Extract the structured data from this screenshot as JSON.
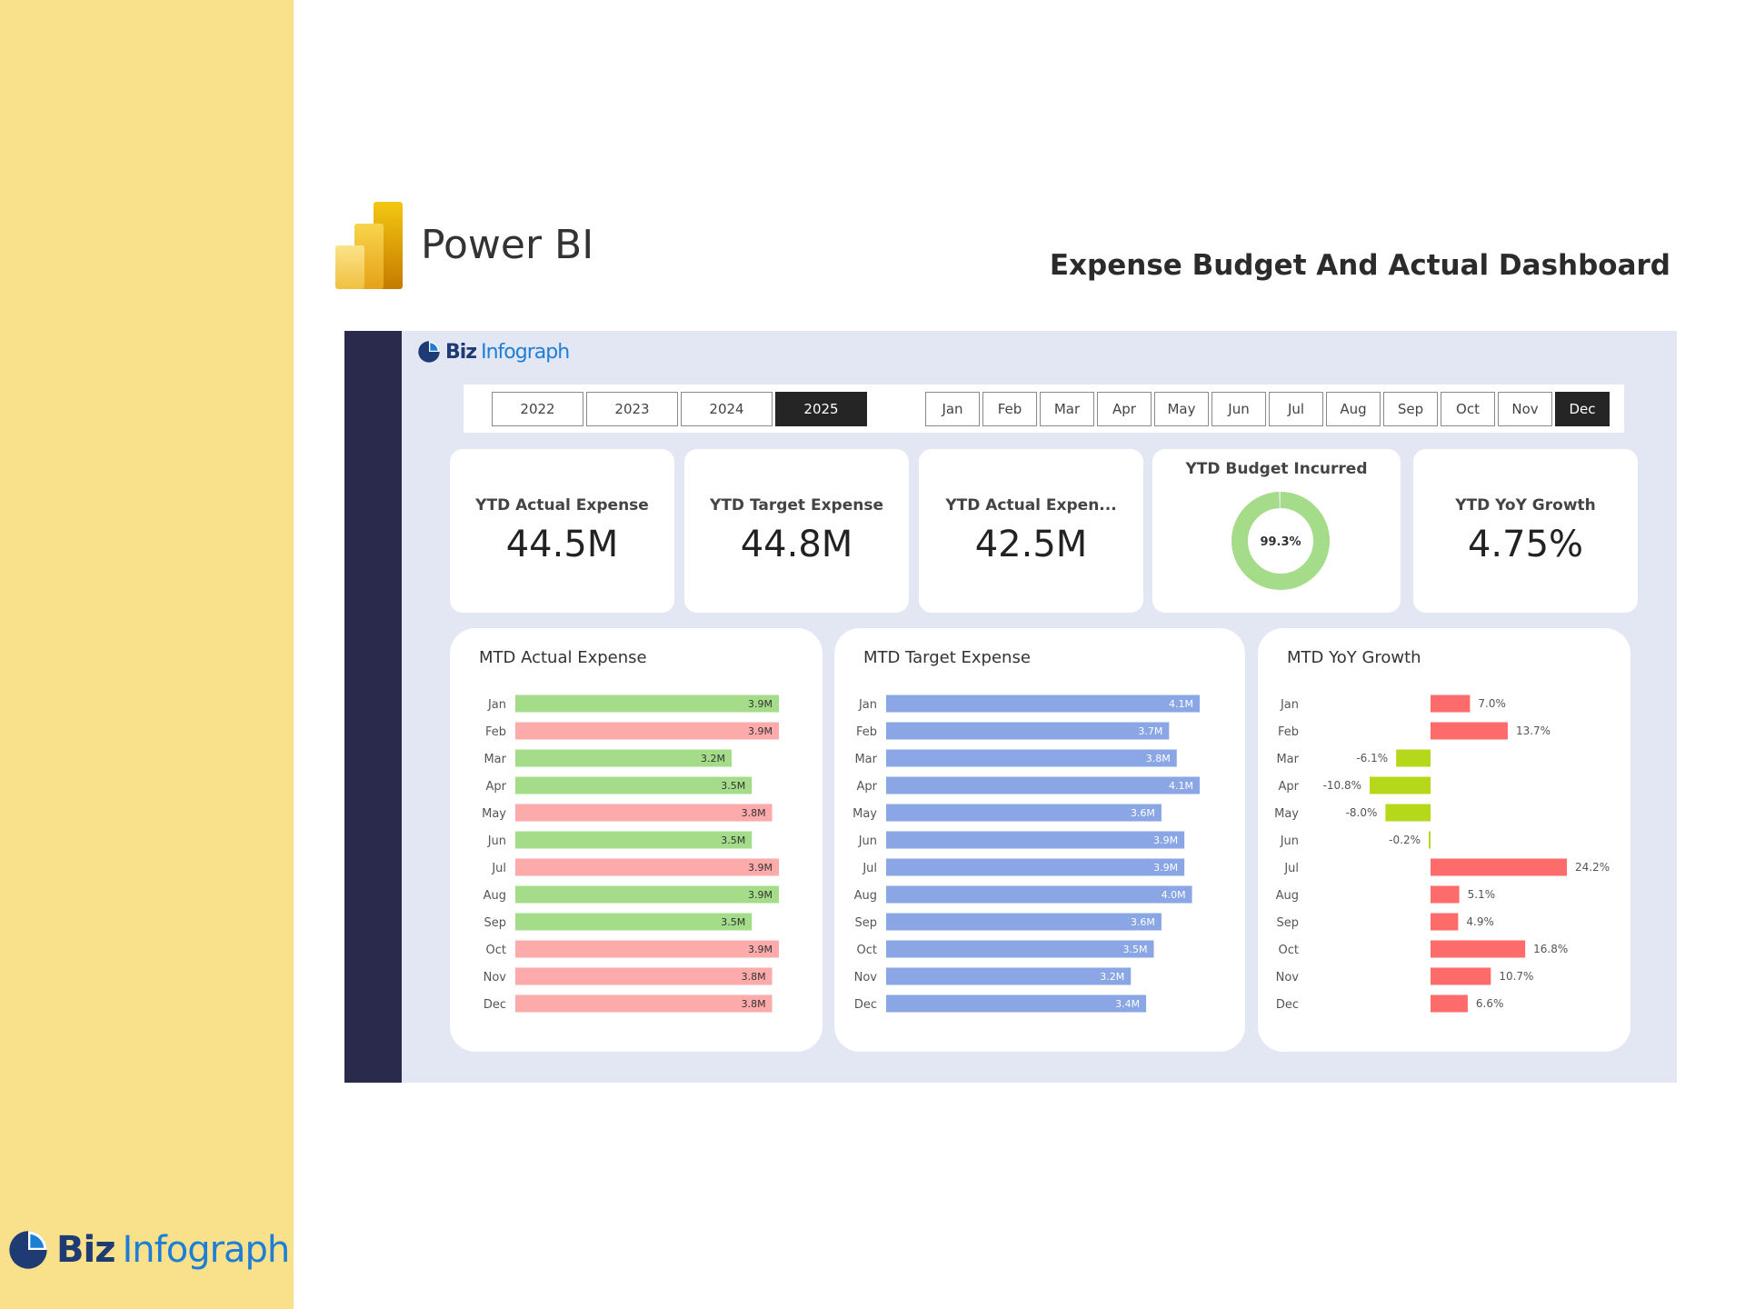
{
  "brand": {
    "word1": "Biz",
    "word2": "Infograph"
  },
  "header": {
    "app_name": "Power BI",
    "dashboard_title": "Expense Budget And Actual Dashboard"
  },
  "colors": {
    "sidebar_yellow": "#f9e08a",
    "nav_dark": "#2a2b4c",
    "green_bar": "#a5dc8a",
    "pink_bar": "#fdaaaa",
    "blue_bar": "#8aa6e4",
    "growth_red": "#fd6b6b",
    "growth_green": "#b5d81a",
    "donut_green": "#a5dc8a"
  },
  "slicers": {
    "years": [
      "2022",
      "2023",
      "2024",
      "2025"
    ],
    "selected_year": "2025",
    "months": [
      "Jan",
      "Feb",
      "Mar",
      "Apr",
      "May",
      "Jun",
      "Jul",
      "Aug",
      "Sep",
      "Oct",
      "Nov",
      "Dec"
    ],
    "selected_month": "Dec"
  },
  "kpis": {
    "ytd_actual": {
      "label": "YTD Actual Expense",
      "value": "44.5M"
    },
    "ytd_target": {
      "label": "YTD Target Expense",
      "value": "44.8M"
    },
    "ytd_actual_py": {
      "label": "YTD Actual Expen...",
      "value": "42.5M"
    },
    "ytd_budget": {
      "label": "YTD Budget Incurred",
      "value": "99.3%",
      "percent": 99.3
    },
    "ytd_yoy": {
      "label": "YTD YoY Growth",
      "value": "4.75%"
    }
  },
  "chart_data": [
    {
      "type": "bar",
      "orientation": "horizontal",
      "title": "MTD Actual Expense",
      "categories": [
        "Jan",
        "Feb",
        "Mar",
        "Apr",
        "May",
        "Jun",
        "Jul",
        "Aug",
        "Sep",
        "Oct",
        "Nov",
        "Dec"
      ],
      "values": [
        3.9,
        3.9,
        3.2,
        3.5,
        3.8,
        3.5,
        3.9,
        3.9,
        3.5,
        3.9,
        3.8,
        3.8
      ],
      "labels": [
        "3.9M",
        "3.9M",
        "3.2M",
        "3.5M",
        "3.8M",
        "3.5M",
        "3.9M",
        "3.9M",
        "3.5M",
        "3.9M",
        "3.8M",
        "3.8M"
      ],
      "status": [
        "under",
        "over",
        "under",
        "under",
        "over",
        "under",
        "over",
        "under",
        "under",
        "over",
        "over",
        "over"
      ]
    },
    {
      "type": "bar",
      "orientation": "horizontal",
      "title": "MTD Target Expense",
      "categories": [
        "Jan",
        "Feb",
        "Mar",
        "Apr",
        "May",
        "Jun",
        "Jul",
        "Aug",
        "Sep",
        "Oct",
        "Nov",
        "Dec"
      ],
      "values": [
        4.1,
        3.7,
        3.8,
        4.1,
        3.6,
        3.9,
        3.9,
        4.0,
        3.6,
        3.5,
        3.2,
        3.4
      ],
      "labels": [
        "4.1M",
        "3.7M",
        "3.8M",
        "4.1M",
        "3.6M",
        "3.9M",
        "3.9M",
        "4.0M",
        "3.6M",
        "3.5M",
        "3.2M",
        "3.4M"
      ]
    },
    {
      "type": "bar",
      "orientation": "horizontal",
      "title": "MTD YoY Growth",
      "categories": [
        "Jan",
        "Feb",
        "Mar",
        "Apr",
        "May",
        "Jun",
        "Jul",
        "Aug",
        "Sep",
        "Oct",
        "Nov",
        "Dec"
      ],
      "values": [
        7.0,
        13.7,
        -6.1,
        -10.8,
        -8.0,
        -0.2,
        24.2,
        5.1,
        4.9,
        16.8,
        10.7,
        6.6
      ],
      "labels": [
        "7.0%",
        "13.7%",
        "-6.1%",
        "-10.8%",
        "-8.0%",
        "-0.2%",
        "24.2%",
        "5.1%",
        "4.9%",
        "16.8%",
        "10.7%",
        "6.6%"
      ]
    }
  ]
}
